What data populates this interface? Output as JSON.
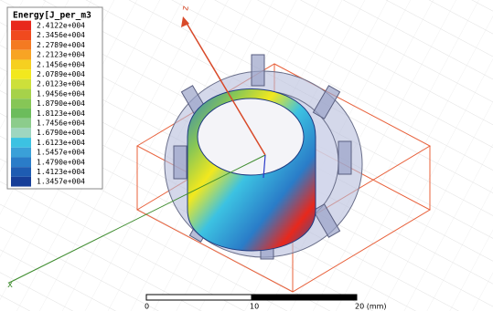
{
  "legend": {
    "title": "Energy[J_per_m3",
    "entries": [
      {
        "label": "2.4122e+004",
        "color": "#e8281c"
      },
      {
        "label": "2.3456e+004",
        "color": "#f04a1e"
      },
      {
        "label": "2.2789e+004",
        "color": "#f47a22"
      },
      {
        "label": "2.2123e+004",
        "color": "#f8a424"
      },
      {
        "label": "2.1456e+004",
        "color": "#f6d020"
      },
      {
        "label": "2.0789e+004",
        "color": "#f2e81e"
      },
      {
        "label": "2.0123e+004",
        "color": "#cde03a"
      },
      {
        "label": "1.9456e+004",
        "color": "#a6d24a"
      },
      {
        "label": "1.8790e+004",
        "color": "#86c656"
      },
      {
        "label": "1.8123e+004",
        "color": "#6cbc5c"
      },
      {
        "label": "1.7456e+004",
        "color": "#8ccc8c"
      },
      {
        "label": "1.6790e+004",
        "color": "#9ed6c0"
      },
      {
        "label": "1.6123e+004",
        "color": "#3cc2e2"
      },
      {
        "label": "1.5457e+004",
        "color": "#3aa0d8"
      },
      {
        "label": "1.4790e+004",
        "color": "#2a7cc8"
      },
      {
        "label": "1.4123e+004",
        "color": "#1e5cb2"
      },
      {
        "label": "1.3457e+004",
        "color": "#163e98"
      }
    ]
  },
  "axes": {
    "z": "z",
    "x": "x"
  },
  "scale_bar": {
    "labels": [
      "0",
      "10",
      "20 (mm)"
    ]
  }
}
